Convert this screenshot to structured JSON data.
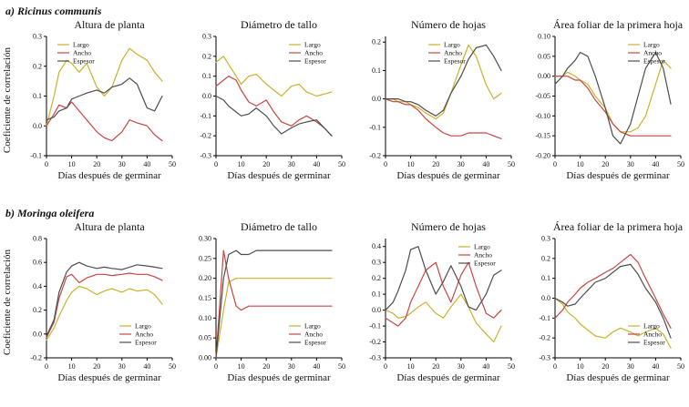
{
  "page": {
    "ylabel": "Coeficiente de correlación",
    "xlabel": "Días después de germinar",
    "rows": [
      {
        "label": "a) Ricinus communis"
      },
      {
        "label": "b) Moringa oleifera"
      }
    ],
    "colors": {
      "largo": "#c9b22b",
      "ancho": "#c94545",
      "espesor": "#4d4d4d"
    }
  },
  "chart_data": [
    {
      "type": "line",
      "title": "Altura de planta",
      "xlabel": "Días después de germinar",
      "xlim": [
        0,
        50
      ],
      "xticks": [
        0,
        10,
        20,
        30,
        40,
        50
      ],
      "ylim": [
        -0.1,
        0.3
      ],
      "yticks": [
        "0.3",
        "0.2",
        "0.1",
        "0.0",
        "-0.1"
      ],
      "legend_pos": "nw",
      "x": [
        0,
        3,
        5,
        8,
        10,
        13,
        16,
        20,
        23,
        26,
        30,
        33,
        36,
        40,
        43,
        46
      ],
      "series": [
        {
          "name": "Largo",
          "color": "largo",
          "y": [
            0.0,
            0.1,
            0.18,
            0.22,
            0.21,
            0.18,
            0.21,
            0.13,
            0.1,
            0.13,
            0.22,
            0.26,
            0.24,
            0.22,
            0.18,
            0.15
          ]
        },
        {
          "name": "Ancho",
          "color": "ancho",
          "y": [
            0.0,
            0.04,
            0.07,
            0.06,
            0.08,
            0.05,
            0.02,
            -0.02,
            -0.04,
            -0.05,
            -0.02,
            0.02,
            0.01,
            0.0,
            -0.03,
            -0.05
          ]
        },
        {
          "name": "Espesor",
          "color": "espesor",
          "y": [
            0.02,
            0.03,
            0.05,
            0.06,
            0.09,
            0.1,
            0.11,
            0.12,
            0.11,
            0.13,
            0.14,
            0.16,
            0.14,
            0.06,
            0.05,
            0.1
          ]
        }
      ]
    },
    {
      "type": "line",
      "title": "Diámetro de tallo",
      "xlabel": "Días después de germinar",
      "xlim": [
        0,
        50
      ],
      "xticks": [
        0,
        10,
        20,
        30,
        40,
        50
      ],
      "ylim": [
        -0.3,
        0.3
      ],
      "yticks": [
        "0.3",
        "0.2",
        "0.1",
        "0.0",
        "-0.1",
        "-0.2",
        "-0.3"
      ],
      "legend_pos": "ne",
      "x": [
        0,
        3,
        5,
        8,
        10,
        13,
        16,
        20,
        23,
        26,
        30,
        33,
        36,
        40,
        43,
        46
      ],
      "series": [
        {
          "name": "Largo",
          "color": "largo",
          "y": [
            0.17,
            0.2,
            0.16,
            0.1,
            0.06,
            0.1,
            0.11,
            0.06,
            0.03,
            0.0,
            0.05,
            0.06,
            0.02,
            0.0,
            0.01,
            0.02
          ]
        },
        {
          "name": "Ancho",
          "color": "ancho",
          "y": [
            0.05,
            0.08,
            0.1,
            0.08,
            0.03,
            -0.03,
            -0.05,
            -0.02,
            -0.08,
            -0.13,
            -0.15,
            -0.12,
            -0.1,
            -0.13,
            -0.16,
            -0.2
          ]
        },
        {
          "name": "Espesor",
          "color": "espesor",
          "y": [
            0.0,
            -0.02,
            -0.05,
            -0.08,
            -0.1,
            -0.09,
            -0.06,
            -0.1,
            -0.15,
            -0.19,
            -0.16,
            -0.14,
            -0.13,
            -0.12,
            -0.16,
            -0.2
          ]
        }
      ]
    },
    {
      "type": "line",
      "title": "Número de hojas",
      "xlabel": "Días después de germinar",
      "xlim": [
        0,
        50
      ],
      "xticks": [
        0,
        10,
        20,
        30,
        40,
        50
      ],
      "ylim": [
        -0.2,
        0.22
      ],
      "yticks": [
        "0.2",
        "0.1",
        "0.0",
        "-0.1",
        "-0.2"
      ],
      "legend_pos": "n",
      "x": [
        0,
        3,
        5,
        8,
        10,
        13,
        16,
        20,
        23,
        26,
        30,
        33,
        36,
        40,
        43,
        46
      ],
      "series": [
        {
          "name": "Largo",
          "color": "largo",
          "y": [
            0.0,
            0.0,
            -0.01,
            -0.01,
            -0.02,
            -0.03,
            -0.05,
            -0.07,
            -0.05,
            0.02,
            0.12,
            0.19,
            0.15,
            0.05,
            0.0,
            0.02
          ]
        },
        {
          "name": "Ancho",
          "color": "ancho",
          "y": [
            0.0,
            -0.01,
            -0.01,
            -0.02,
            -0.02,
            -0.04,
            -0.07,
            -0.1,
            -0.12,
            -0.13,
            -0.13,
            -0.12,
            -0.12,
            -0.12,
            -0.13,
            -0.14
          ]
        },
        {
          "name": "Espesor",
          "color": "espesor",
          "y": [
            0.0,
            0.0,
            0.0,
            -0.01,
            -0.01,
            -0.02,
            -0.04,
            -0.06,
            -0.04,
            0.02,
            0.08,
            0.14,
            0.18,
            0.19,
            0.15,
            0.1
          ]
        }
      ]
    },
    {
      "type": "line",
      "title": "Área foliar de la primera hoja",
      "xlabel": "Días después de germinar",
      "xlim": [
        0,
        50
      ],
      "xticks": [
        0,
        10,
        20,
        30,
        40,
        50
      ],
      "ylim": [
        -0.2,
        0.1
      ],
      "yticks": [
        "0.10",
        "0.05",
        "0.00",
        "-0.05",
        "-0.10",
        "-0.15",
        "-0.20"
      ],
      "legend_pos": "ne",
      "x": [
        0,
        3,
        5,
        8,
        10,
        13,
        16,
        20,
        23,
        26,
        30,
        33,
        36,
        40,
        43,
        46
      ],
      "series": [
        {
          "name": "Largo",
          "color": "largo",
          "y": [
            0.0,
            0.0,
            0.01,
            0.0,
            -0.01,
            -0.02,
            -0.05,
            -0.08,
            -0.12,
            -0.14,
            -0.14,
            -0.13,
            -0.1,
            -0.02,
            0.04,
            0.02
          ]
        },
        {
          "name": "Ancho",
          "color": "ancho",
          "y": [
            0.0,
            0.0,
            0.0,
            -0.01,
            -0.01,
            -0.03,
            -0.06,
            -0.09,
            -0.12,
            -0.14,
            -0.15,
            -0.15,
            -0.15,
            -0.15,
            -0.15,
            -0.15
          ]
        },
        {
          "name": "Espesor",
          "color": "espesor",
          "y": [
            -0.02,
            0.0,
            0.02,
            0.04,
            0.06,
            0.05,
            0.0,
            -0.08,
            -0.15,
            -0.17,
            -0.12,
            -0.05,
            0.02,
            0.06,
            0.02,
            -0.07
          ]
        }
      ]
    },
    {
      "type": "line",
      "title": "Altura de planta",
      "xlabel": "Días después de germinar",
      "xlim": [
        0,
        50
      ],
      "xticks": [
        0,
        10,
        20,
        30,
        40,
        50
      ],
      "ylim": [
        -0.2,
        0.8
      ],
      "yticks": [
        "0.8",
        "0.6",
        "0.4",
        "0.2",
        "0.0",
        "-0.2"
      ],
      "legend_pos": "se",
      "x": [
        0,
        3,
        5,
        8,
        10,
        13,
        16,
        20,
        23,
        26,
        30,
        33,
        36,
        40,
        43,
        46
      ],
      "series": [
        {
          "name": "Largo",
          "color": "largo",
          "y": [
            -0.05,
            0.05,
            0.15,
            0.28,
            0.35,
            0.4,
            0.38,
            0.33,
            0.36,
            0.38,
            0.35,
            0.38,
            0.36,
            0.37,
            0.33,
            0.25
          ]
        },
        {
          "name": "Ancho",
          "color": "ancho",
          "y": [
            -0.03,
            0.1,
            0.3,
            0.48,
            0.5,
            0.43,
            0.47,
            0.5,
            0.5,
            0.49,
            0.5,
            0.51,
            0.5,
            0.5,
            0.48,
            0.45
          ]
        },
        {
          "name": "Espesor",
          "color": "espesor",
          "y": [
            -0.02,
            0.12,
            0.35,
            0.52,
            0.57,
            0.6,
            0.57,
            0.55,
            0.56,
            0.55,
            0.54,
            0.56,
            0.58,
            0.57,
            0.56,
            0.55
          ]
        }
      ]
    },
    {
      "type": "line",
      "title": "Diámetro de tallo",
      "xlabel": "Días después de germinar",
      "xlim": [
        0,
        50
      ],
      "xticks": [
        0,
        10,
        20,
        30,
        40,
        50
      ],
      "ylim": [
        0.0,
        0.3
      ],
      "yticks": [
        "0.30",
        "0.25",
        "0.20",
        "0.15",
        "0.10",
        "0.05",
        "0.00"
      ],
      "legend_pos": "se",
      "x": [
        0,
        3,
        5,
        8,
        10,
        13,
        16,
        20,
        23,
        26,
        30,
        33,
        36,
        40,
        43,
        46
      ],
      "series": [
        {
          "name": "Largo",
          "color": "largo",
          "y": [
            0.0,
            0.12,
            0.19,
            0.2,
            0.2,
            0.2,
            0.2,
            0.2,
            0.2,
            0.2,
            0.2,
            0.2,
            0.2,
            0.2,
            0.2,
            0.2
          ]
        },
        {
          "name": "Ancho",
          "color": "ancho",
          "y": [
            0.0,
            0.27,
            0.2,
            0.13,
            0.12,
            0.13,
            0.13,
            0.13,
            0.13,
            0.13,
            0.13,
            0.13,
            0.13,
            0.13,
            0.13,
            0.13
          ]
        },
        {
          "name": "Espesor",
          "color": "espesor",
          "y": [
            0.0,
            0.2,
            0.26,
            0.27,
            0.26,
            0.26,
            0.27,
            0.27,
            0.27,
            0.27,
            0.27,
            0.27,
            0.27,
            0.27,
            0.27,
            0.27
          ]
        }
      ]
    },
    {
      "type": "line",
      "title": "Número de hojas",
      "xlabel": "Días después de germinar",
      "xlim": [
        0,
        50
      ],
      "xticks": [
        0,
        10,
        20,
        30,
        40,
        50
      ],
      "ylim": [
        -0.3,
        0.45
      ],
      "yticks": [
        "0.4",
        "0.3",
        "0.2",
        "0.1",
        "0.0",
        "-0.1",
        "-0.2",
        "-0.3"
      ],
      "legend_pos": "ne",
      "x": [
        0,
        3,
        5,
        8,
        10,
        13,
        16,
        20,
        23,
        26,
        30,
        33,
        36,
        40,
        43,
        46
      ],
      "series": [
        {
          "name": "Largo",
          "color": "largo",
          "y": [
            0.0,
            -0.02,
            -0.05,
            -0.04,
            -0.02,
            0.02,
            0.05,
            -0.02,
            -0.05,
            0.02,
            0.1,
            0.02,
            -0.08,
            -0.15,
            -0.2,
            -0.1
          ]
        },
        {
          "name": "Ancho",
          "color": "ancho",
          "y": [
            -0.05,
            -0.08,
            -0.1,
            -0.05,
            0.05,
            0.15,
            0.25,
            0.3,
            0.15,
            0.05,
            0.22,
            0.3,
            0.15,
            -0.02,
            -0.05,
            0.0
          ]
        },
        {
          "name": "Espesor",
          "color": "espesor",
          "y": [
            0.0,
            0.05,
            0.12,
            0.25,
            0.38,
            0.4,
            0.25,
            0.1,
            0.18,
            0.28,
            0.15,
            0.02,
            0.0,
            0.1,
            0.22,
            0.25
          ]
        }
      ]
    },
    {
      "type": "line",
      "title": "Área foliar de la primera hoja",
      "xlabel": "Días después de germinar",
      "xlim": [
        0,
        50
      ],
      "xticks": [
        0,
        10,
        20,
        30,
        40,
        50
      ],
      "ylim": [
        -0.3,
        0.3
      ],
      "yticks": [
        "0.3",
        "0.2",
        "0.1",
        "0.0",
        "-0.1",
        "-0.2",
        "-0.3"
      ],
      "legend_pos": "se",
      "x": [
        0,
        3,
        5,
        8,
        10,
        13,
        16,
        20,
        23,
        26,
        30,
        33,
        36,
        40,
        43,
        46
      ],
      "series": [
        {
          "name": "Largo",
          "color": "largo",
          "y": [
            0.0,
            -0.03,
            -0.07,
            -0.1,
            -0.13,
            -0.16,
            -0.19,
            -0.2,
            -0.17,
            -0.15,
            -0.17,
            -0.19,
            -0.17,
            -0.15,
            -0.18,
            -0.25
          ]
        },
        {
          "name": "Ancho",
          "color": "ancho",
          "y": [
            -0.1,
            -0.06,
            -0.02,
            0.02,
            0.05,
            0.08,
            0.1,
            0.13,
            0.15,
            0.18,
            0.22,
            0.18,
            0.1,
            0.0,
            -0.08,
            -0.15
          ]
        },
        {
          "name": "Espesor",
          "color": "espesor",
          "y": [
            0.0,
            -0.02,
            -0.04,
            -0.03,
            0.0,
            0.04,
            0.08,
            0.1,
            0.13,
            0.16,
            0.17,
            0.12,
            0.05,
            -0.02,
            -0.1,
            -0.2
          ]
        }
      ]
    }
  ]
}
